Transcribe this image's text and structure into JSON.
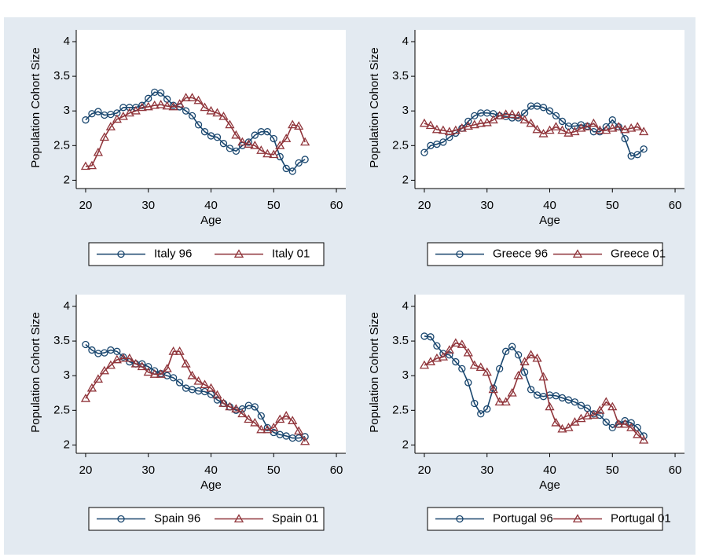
{
  "chart_data": [
    {
      "type": "line",
      "ylabel": "Population Cohort Size",
      "xlabel": "Age",
      "x": [
        20,
        21,
        22,
        23,
        24,
        25,
        26,
        27,
        28,
        29,
        30,
        31,
        32,
        33,
        34,
        35,
        36,
        37,
        38,
        39,
        40,
        41,
        42,
        43,
        44,
        45,
        46,
        47,
        48,
        49,
        50,
        51,
        52,
        53,
        54,
        55
      ],
      "series": [
        {
          "name": "Italy 96",
          "color": "#1a476f",
          "marker": "circle",
          "values": [
            2.87,
            2.96,
            2.99,
            2.94,
            2.95,
            2.97,
            3.05,
            3.05,
            3.05,
            3.08,
            3.18,
            3.27,
            3.26,
            3.17,
            3.08,
            3.06,
            3.0,
            2.93,
            2.8,
            2.7,
            2.64,
            2.62,
            2.53,
            2.46,
            2.42,
            2.5,
            2.55,
            2.65,
            2.7,
            2.7,
            2.6,
            2.34,
            2.17,
            2.13,
            2.25,
            2.3
          ]
        },
        {
          "name": "Italy 01",
          "color": "#90353b",
          "marker": "triangle",
          "values": [
            2.2,
            2.21,
            2.4,
            2.62,
            2.77,
            2.88,
            2.92,
            2.97,
            3.0,
            3.05,
            3.06,
            3.08,
            3.09,
            3.07,
            3.06,
            3.1,
            3.19,
            3.19,
            3.15,
            3.05,
            3.0,
            2.97,
            2.92,
            2.8,
            2.65,
            2.55,
            2.52,
            2.5,
            2.43,
            2.38,
            2.37,
            2.5,
            2.6,
            2.8,
            2.78,
            2.55
          ]
        }
      ],
      "xlim": [
        18.5,
        61.5
      ],
      "ylim": [
        1.88,
        4.17
      ],
      "xticks": [
        20,
        30,
        40,
        50,
        60
      ],
      "yticks": [
        2,
        2.5,
        3,
        3.5,
        4
      ],
      "grid": false,
      "legend": "bottom"
    },
    {
      "type": "line",
      "ylabel": "Population Cohort Size",
      "xlabel": "Age",
      "x": [
        20,
        21,
        22,
        23,
        24,
        25,
        26,
        27,
        28,
        29,
        30,
        31,
        32,
        33,
        34,
        35,
        36,
        37,
        38,
        39,
        40,
        41,
        42,
        43,
        44,
        45,
        46,
        47,
        48,
        49,
        50,
        51,
        52,
        53,
        54,
        55
      ],
      "series": [
        {
          "name": "Greece 96",
          "color": "#1a476f",
          "marker": "circle",
          "values": [
            2.4,
            2.5,
            2.52,
            2.55,
            2.62,
            2.68,
            2.75,
            2.85,
            2.93,
            2.97,
            2.97,
            2.96,
            2.93,
            2.92,
            2.9,
            2.9,
            2.97,
            3.07,
            3.07,
            3.05,
            3.0,
            2.93,
            2.85,
            2.78,
            2.78,
            2.8,
            2.78,
            2.7,
            2.7,
            2.77,
            2.87,
            2.77,
            2.6,
            2.35,
            2.37,
            2.45
          ]
        },
        {
          "name": "Greece 01",
          "color": "#90353b",
          "marker": "triangle",
          "values": [
            2.82,
            2.79,
            2.73,
            2.72,
            2.7,
            2.72,
            2.75,
            2.78,
            2.8,
            2.82,
            2.83,
            2.87,
            2.93,
            2.95,
            2.95,
            2.93,
            2.87,
            2.82,
            2.73,
            2.67,
            2.72,
            2.77,
            2.72,
            2.68,
            2.7,
            2.75,
            2.77,
            2.82,
            2.72,
            2.72,
            2.75,
            2.77,
            2.73,
            2.75,
            2.77,
            2.7
          ]
        }
      ],
      "xlim": [
        18.5,
        61.5
      ],
      "ylim": [
        1.88,
        4.17
      ],
      "xticks": [
        20,
        30,
        40,
        50,
        60
      ],
      "yticks": [
        2,
        2.5,
        3,
        3.5,
        4
      ],
      "grid": false,
      "legend": "bottom"
    },
    {
      "type": "line",
      "ylabel": "Population Cohort Size",
      "xlabel": "Age",
      "x": [
        20,
        21,
        22,
        23,
        24,
        25,
        26,
        27,
        28,
        29,
        30,
        31,
        32,
        33,
        34,
        35,
        36,
        37,
        38,
        39,
        40,
        41,
        42,
        43,
        44,
        45,
        46,
        47,
        48,
        49,
        50,
        51,
        52,
        53,
        54,
        55
      ],
      "series": [
        {
          "name": "Spain 96",
          "color": "#1a476f",
          "marker": "circle",
          "values": [
            3.45,
            3.37,
            3.32,
            3.33,
            3.37,
            3.35,
            3.27,
            3.2,
            3.17,
            3.17,
            3.13,
            3.07,
            3.03,
            3.0,
            2.97,
            2.9,
            2.82,
            2.8,
            2.78,
            2.77,
            2.73,
            2.65,
            2.6,
            2.55,
            2.5,
            2.52,
            2.57,
            2.55,
            2.42,
            2.25,
            2.18,
            2.15,
            2.13,
            2.1,
            2.1,
            2.12
          ]
        },
        {
          "name": "Spain 01",
          "color": "#90353b",
          "marker": "triangle",
          "values": [
            2.67,
            2.82,
            2.95,
            3.07,
            3.15,
            3.23,
            3.25,
            3.25,
            3.17,
            3.13,
            3.05,
            3.02,
            3.02,
            3.1,
            3.35,
            3.35,
            3.17,
            3.0,
            2.92,
            2.87,
            2.82,
            2.72,
            2.6,
            2.55,
            2.52,
            2.45,
            2.37,
            2.32,
            2.22,
            2.22,
            2.25,
            2.37,
            2.42,
            2.35,
            2.2,
            2.05
          ]
        }
      ],
      "xlim": [
        18.5,
        61.5
      ],
      "ylim": [
        1.88,
        4.17
      ],
      "xticks": [
        20,
        30,
        40,
        50,
        60
      ],
      "yticks": [
        2,
        2.5,
        3,
        3.5,
        4
      ],
      "grid": false,
      "legend": "bottom"
    },
    {
      "type": "line",
      "ylabel": "Population Cohort Size",
      "xlabel": "Age",
      "x": [
        20,
        21,
        22,
        23,
        24,
        25,
        26,
        27,
        28,
        29,
        30,
        31,
        32,
        33,
        34,
        35,
        36,
        37,
        38,
        39,
        40,
        41,
        42,
        43,
        44,
        45,
        46,
        47,
        48,
        49,
        50,
        51,
        52,
        53,
        54,
        55
      ],
      "series": [
        {
          "name": "Portugal 96",
          "color": "#1a476f",
          "marker": "circle",
          "values": [
            3.57,
            3.56,
            3.43,
            3.32,
            3.3,
            3.2,
            3.1,
            2.9,
            2.6,
            2.45,
            2.52,
            2.82,
            3.1,
            3.35,
            3.42,
            3.3,
            3.05,
            2.8,
            2.72,
            2.7,
            2.72,
            2.71,
            2.68,
            2.65,
            2.62,
            2.57,
            2.53,
            2.45,
            2.43,
            2.33,
            2.25,
            2.3,
            2.35,
            2.32,
            2.25,
            2.13
          ]
        },
        {
          "name": "Portugal 01",
          "color": "#90353b",
          "marker": "triangle",
          "values": [
            3.15,
            3.2,
            3.25,
            3.27,
            3.37,
            3.47,
            3.45,
            3.33,
            3.15,
            3.12,
            3.05,
            2.8,
            2.62,
            2.62,
            2.75,
            3.0,
            3.2,
            3.3,
            3.25,
            2.98,
            2.55,
            2.32,
            2.23,
            2.25,
            2.33,
            2.38,
            2.42,
            2.43,
            2.5,
            2.62,
            2.55,
            2.3,
            2.3,
            2.25,
            2.15,
            2.07
          ]
        }
      ],
      "xlim": [
        18.5,
        61.5
      ],
      "ylim": [
        1.88,
        4.17
      ],
      "xticks": [
        20,
        30,
        40,
        50,
        60
      ],
      "yticks": [
        2,
        2.5,
        3,
        3.5,
        4
      ],
      "grid": false,
      "legend": "bottom"
    }
  ]
}
